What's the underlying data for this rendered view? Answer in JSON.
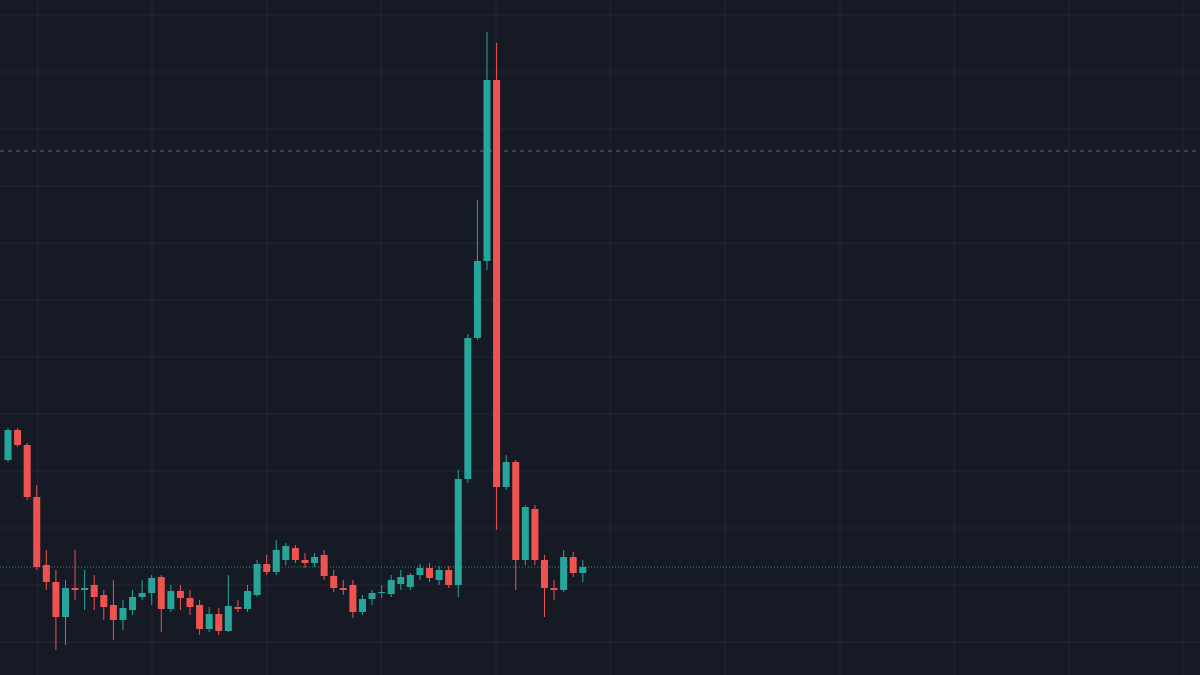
{
  "chart_data": {
    "type": "candlestick",
    "ylim": [
      0,
      675
    ],
    "up_color": "#26a69a",
    "down_color": "#ef5350",
    "open": [
      215,
      245,
      230,
      178,
      110,
      93,
      58,
      87,
      85,
      90,
      80,
      70,
      55,
      65,
      78,
      82,
      98,
      66,
      84,
      77,
      70,
      46,
      61,
      44,
      68,
      66,
      80,
      111,
      103,
      115,
      127,
      115,
      112,
      120,
      99,
      87,
      90,
      63,
      76,
      82,
      81,
      91,
      88,
      100,
      107,
      95,
      105,
      90,
      196,
      337,
      414,
      595,
      188,
      213,
      115,
      166,
      115,
      87,
      85,
      118,
      102
    ],
    "high": [
      247,
      247,
      232,
      190,
      125,
      105,
      95,
      125,
      105,
      100,
      85,
      95,
      75,
      85,
      95,
      100,
      100,
      90,
      90,
      85,
      75,
      68,
      67,
      100,
      75,
      90,
      115,
      120,
      135,
      132,
      130,
      122,
      122,
      125,
      105,
      95,
      95,
      80,
      85,
      90,
      100,
      105,
      102,
      111,
      112,
      109,
      109,
      205,
      341,
      475,
      643,
      632,
      220,
      215,
      170,
      170,
      120,
      95,
      125,
      123,
      115
    ],
    "low": [
      213,
      228,
      175,
      105,
      85,
      25,
      30,
      75,
      65,
      65,
      55,
      35,
      45,
      60,
      75,
      70,
      43,
      63,
      65,
      60,
      40,
      43,
      40,
      43,
      63,
      63,
      78,
      100,
      100,
      110,
      112,
      107,
      108,
      95,
      83,
      80,
      57,
      60,
      70,
      77,
      78,
      85,
      85,
      95,
      93,
      90,
      87,
      78,
      192,
      335,
      405,
      145,
      185,
      85,
      110,
      110,
      58,
      75,
      83,
      98,
      93
    ],
    "close": [
      245,
      230,
      178,
      108,
      93,
      58,
      87,
      85,
      87,
      78,
      68,
      55,
      67,
      78,
      82,
      97,
      66,
      84,
      77,
      68,
      46,
      61,
      44,
      69,
      66,
      84,
      111,
      103,
      125,
      129,
      115,
      112,
      118,
      99,
      87,
      85,
      63,
      76,
      82,
      83,
      95,
      98,
      100,
      107,
      97,
      105,
      90,
      196,
      337,
      414,
      595,
      188,
      213,
      115,
      168,
      115,
      87,
      85,
      118,
      102,
      108
    ],
    "reference_lines": [
      {
        "value": 524,
        "style": "dashed",
        "color": "#787b86"
      },
      {
        "value": 108,
        "style": "dotted",
        "color": "#26a69a"
      }
    ]
  }
}
